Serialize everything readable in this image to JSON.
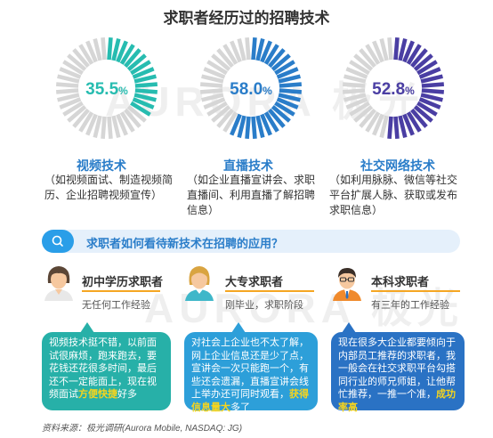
{
  "title": "求职者经历过的招聘技术",
  "watermark": {
    "text": "AURORA 极光"
  },
  "chart_data": {
    "type": "donut",
    "title": "求职者经历过的招聘技术",
    "series": [
      {
        "name": "视频技术",
        "value": 35.5,
        "value_label": "35.5",
        "unit": "%",
        "color": "#27bcb0"
      },
      {
        "name": "直播技术",
        "value": 58.0,
        "value_label": "58.0",
        "unit": "%",
        "color": "#2a7dc9"
      },
      {
        "name": "社交网络技术",
        "value": 52.8,
        "value_label": "52.8",
        "unit": "%",
        "color": "#4a3ea3"
      }
    ],
    "track_color": "#d6d6d6"
  },
  "techs": [
    {
      "title": "视频技术",
      "desc": "（如视频面试、制造视频简历、企业招聘视频宣传）"
    },
    {
      "title": "直播技术",
      "desc": "（如企业直播宣讲会、求职直播间、利用直播了解招聘信息）"
    },
    {
      "title": "社交网络技术",
      "desc": "（如利用脉脉、微信等社交平台扩展人脉、获取或发布求职信息）"
    }
  ],
  "question": "求职者如何看待新技术在招聘的应用？",
  "question_icon": "search-icon",
  "personas": [
    {
      "name": "初中学历求职者",
      "desc": "无任何工作经验",
      "color": "#27b0a8",
      "bubble_text": "视频技术挺不错，以前面试很麻烦，跑来跑去，要花钱还花很多时间，最后还不一定能面上，现在视频面试",
      "bubble_highlight": "方便快捷",
      "bubble_tail": "好多"
    },
    {
      "name": "大专求职者",
      "desc": "刚毕业，求职阶段",
      "color": "#2d9fd9",
      "bubble_text": "对社会上企业也不太了解，网上企业信息还是少了点，宣讲会一次只能跑一个，有些还会遗漏，直播宣讲会线上举办还可同时观看，",
      "bubble_highlight": "获得信息量大",
      "bubble_tail": "多了"
    },
    {
      "name": "本科求职者",
      "desc": "有三年的工作经验",
      "color": "#2a72c4",
      "bubble_text": "现在很多大企业都要倾向于内部员工推荐的求职者，我一般会在社交求职平台勾搭同行业的师兄师姐，让他帮忙推荐，一推一个准，",
      "bubble_highlight": "成功率高",
      "bubble_tail": ""
    }
  ],
  "source": "资料来源：极光调研(Aurora Mobile, NASDAQ: JG)"
}
